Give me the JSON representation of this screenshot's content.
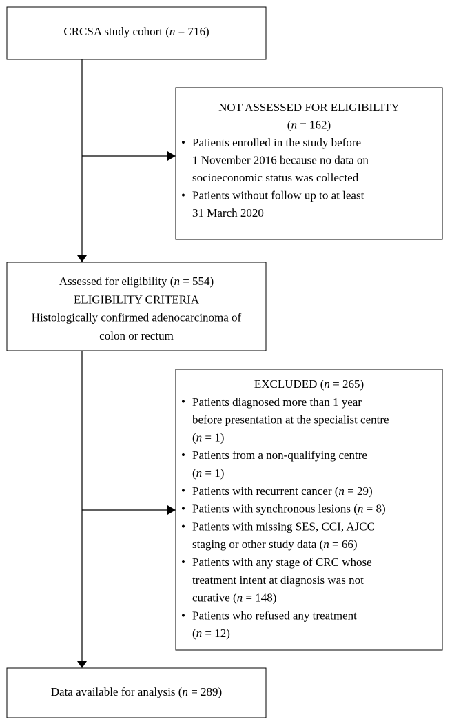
{
  "nodes": [
    {
      "lines": [
        [
          "CRCSA study cohort (",
          "n",
          " = 716)"
        ]
      ]
    },
    {
      "lines": [
        [
          "NOT ASSESSED FOR ELIGIBILITY"
        ],
        [
          "(",
          "n",
          " = 162)"
        ]
      ],
      "items": [
        [
          [
            "Patients enrolled in the study before"
          ],
          [
            "1 November 2016 because no data on"
          ],
          [
            "socioeconomic status was collected"
          ]
        ],
        [
          [
            "Patients without follow up to at least"
          ],
          [
            "31 March 2020"
          ]
        ]
      ]
    },
    {
      "lines": [
        [
          "Assessed for eligibility (",
          "n",
          " = 554)"
        ],
        [
          "ELIGIBILITY CRITERIA"
        ],
        [
          "Histologically confirmed adenocarcinoma of"
        ],
        [
          "colon or rectum"
        ]
      ]
    },
    {
      "lines": [
        [
          "EXCLUDED (",
          "n",
          " = 265)"
        ]
      ],
      "items": [
        [
          [
            "Patients diagnosed more than 1 year"
          ],
          [
            "before presentation at the specialist centre"
          ],
          [
            "(",
            "n",
            " = 1)"
          ]
        ],
        [
          [
            "Patients from a non-qualifying centre"
          ],
          [
            "(",
            "n",
            " = 1)"
          ]
        ],
        [
          [
            "Patients with recurrent cancer (",
            "n",
            " = 29)"
          ]
        ],
        [
          [
            "Patients with synchronous lesions (",
            "n",
            " = 8)"
          ]
        ],
        [
          [
            "Patients with missing SES, CCI, AJCC"
          ],
          [
            "staging or other study data (",
            "n",
            " = 66)"
          ]
        ],
        [
          [
            "Patients with any stage of CRC whose"
          ],
          [
            "treatment intent at diagnosis was not"
          ],
          [
            "curative (",
            "n",
            " = 148)"
          ]
        ],
        [
          [
            "Patients who refused any treatment"
          ],
          [
            "(",
            "n",
            " = 12)"
          ]
        ]
      ]
    },
    {
      "lines": [
        [
          "Data available for analysis (",
          "n",
          " = 289)"
        ]
      ]
    }
  ]
}
